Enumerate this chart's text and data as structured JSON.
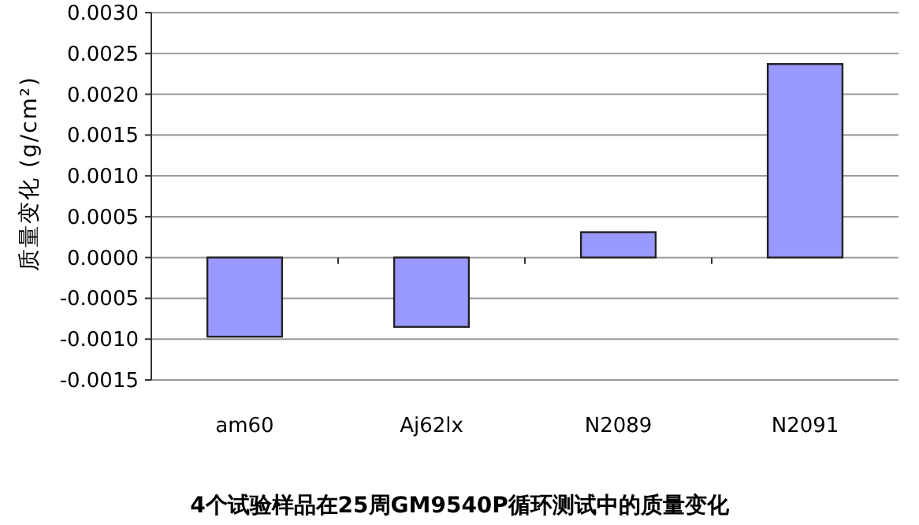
{
  "chart_data": {
    "type": "bar",
    "title": "4个试验样品在25周GM9540P循环测试中的质量变化",
    "ylabel": "质量变化 (g/cm²)",
    "categories": [
      "am60",
      "Aj62lx",
      "N2089",
      "N2091"
    ],
    "values": [
      -0.00097,
      -0.00085,
      0.00031,
      0.00237
    ],
    "color": "#9999ff",
    "ylim": [
      -0.0015,
      0.003
    ],
    "yticks": [
      {
        "value": -0.0015,
        "label": "-0.0015"
      },
      {
        "value": -0.001,
        "label": "-0.0010"
      },
      {
        "value": -0.0005,
        "label": "-0.0005"
      },
      {
        "value": 0,
        "label": "0.0000"
      },
      {
        "value": 0.0005,
        "label": "0.0005"
      },
      {
        "value": 0.001,
        "label": "0.0010"
      },
      {
        "value": 0.0015,
        "label": "0.0015"
      },
      {
        "value": 0.002,
        "label": "0.0020"
      },
      {
        "value": 0.0025,
        "label": "0.0025"
      },
      {
        "value": 0.003,
        "label": "0.0030"
      }
    ],
    "grid": "y"
  }
}
